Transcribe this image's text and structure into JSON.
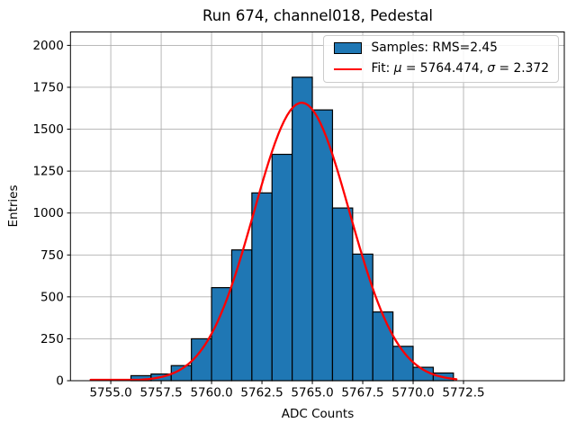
{
  "figure": {
    "title": "Run 674, channel018, Pedestal",
    "background": "#ffffff"
  },
  "chart_data": {
    "type": "bar",
    "subtype": "histogram",
    "title": "Run 674, channel018, Pedestal",
    "xlabel": "ADC Counts",
    "ylabel": "Entries",
    "bin_edges": [
      5756,
      5757,
      5758,
      5759,
      5760,
      5761,
      5762,
      5763,
      5764,
      5765,
      5766,
      5767,
      5768,
      5769,
      5770,
      5771,
      5772
    ],
    "counts": [
      30,
      40,
      90,
      250,
      555,
      780,
      1120,
      1350,
      1810,
      1615,
      1030,
      755,
      410,
      205,
      80,
      46
    ],
    "xlim": [
      5753.0,
      5777.5
    ],
    "ylim": [
      0,
      2080
    ],
    "xticks": [
      {
        "v": 5755.0,
        "label": "5755.0"
      },
      {
        "v": 5757.5,
        "label": "5757.5"
      },
      {
        "v": 5760.0,
        "label": "5760.0"
      },
      {
        "v": 5762.5,
        "label": "5762.5"
      },
      {
        "v": 5765.0,
        "label": "5765.0"
      },
      {
        "v": 5767.5,
        "label": "5767.5"
      },
      {
        "v": 5770.0,
        "label": "5770.0"
      },
      {
        "v": 5772.5,
        "label": "5772.5"
      }
    ],
    "yticks": [
      {
        "v": 0,
        "label": "0"
      },
      {
        "v": 250,
        "label": "250"
      },
      {
        "v": 500,
        "label": "500"
      },
      {
        "v": 750,
        "label": "750"
      },
      {
        "v": 1000,
        "label": "1000"
      },
      {
        "v": 1250,
        "label": "1250"
      },
      {
        "v": 1500,
        "label": "1500"
      },
      {
        "v": 1750,
        "label": "1750"
      },
      {
        "v": 2000,
        "label": "2000"
      }
    ],
    "grid": true,
    "legend_position": "upper right",
    "series_color": "#1f77b4",
    "bar_edge_color": "#000000",
    "fit": {
      "mu": 5764.474,
      "sigma": 2.372,
      "peak_height": 1658,
      "range": [
        5754.0,
        5772.2
      ],
      "color": "#ff0000"
    },
    "stats": {
      "rms": 2.45
    },
    "legend": [
      {
        "swatch": "patch",
        "label": "Samples: RMS=2.45"
      },
      {
        "swatch": "line",
        "label": "Fit: μ = 5764.474, σ = 2.372"
      }
    ]
  },
  "colors": {
    "grid": "#b0b0b0",
    "spine": "#000000",
    "text": "#000000"
  }
}
